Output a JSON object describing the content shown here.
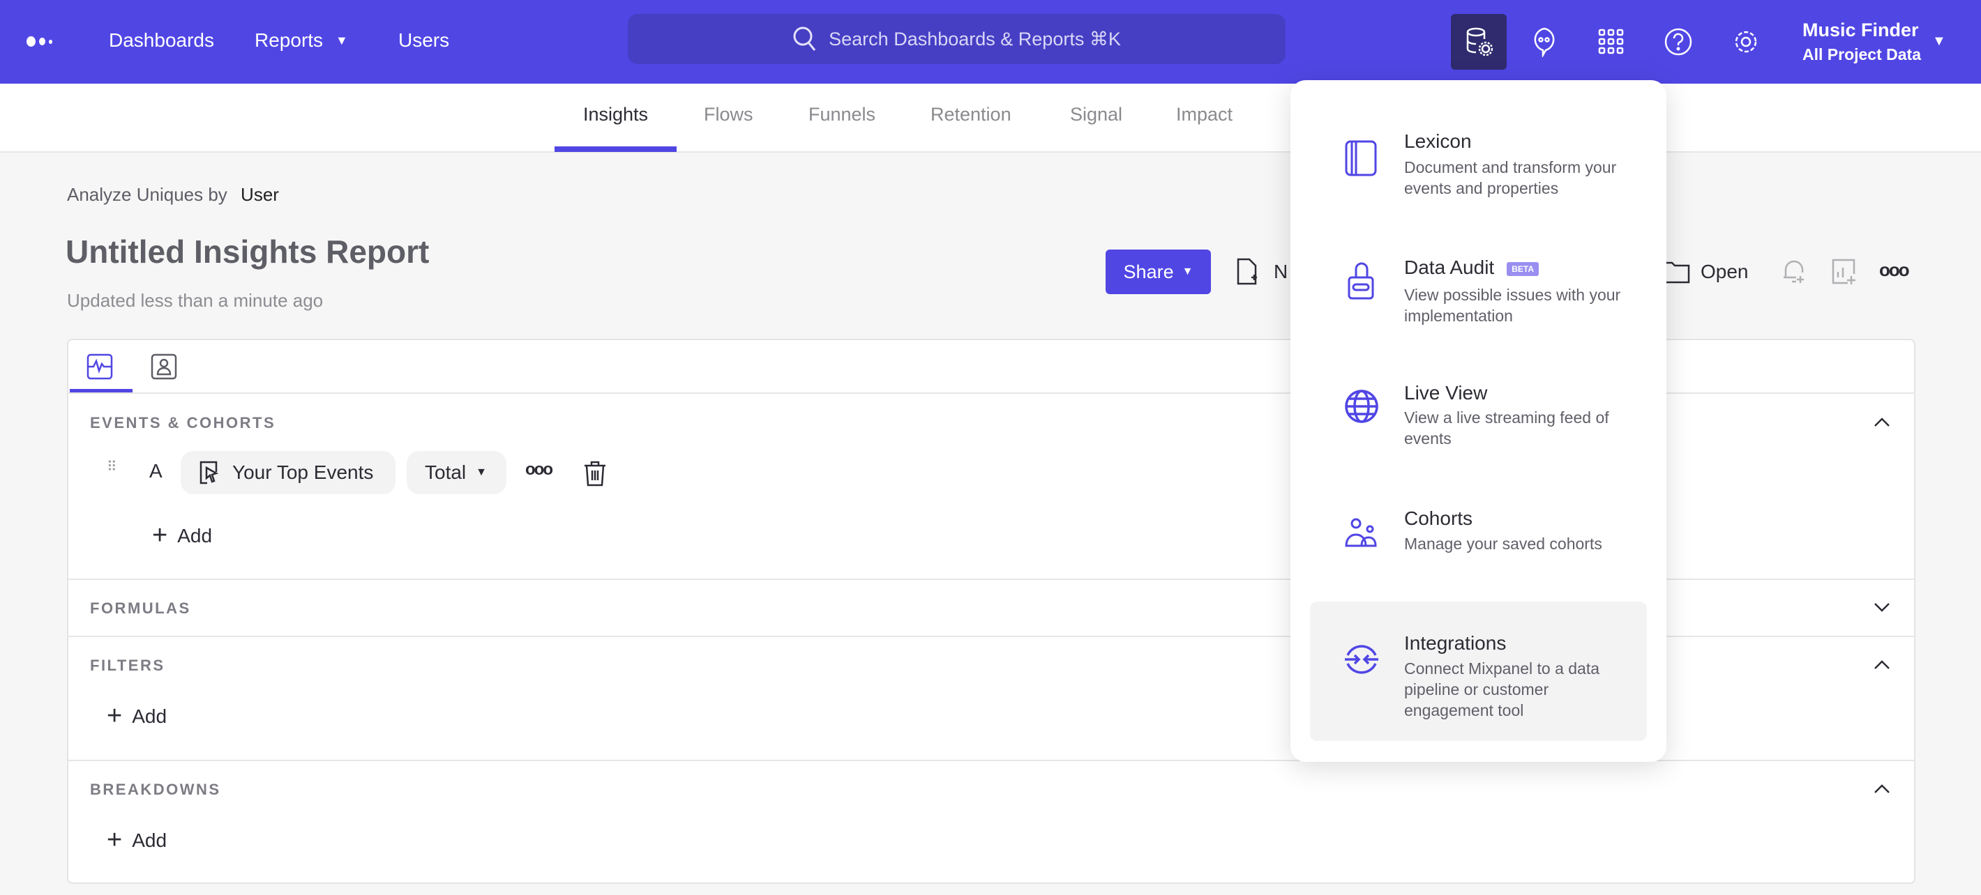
{
  "topbar": {
    "nav": [
      "Dashboards",
      "Reports",
      "Users"
    ],
    "search_placeholder": "Search Dashboards & Reports ⌘K",
    "icons": [
      "data-management-icon",
      "chat-icon",
      "apps-grid-icon",
      "help-icon",
      "settings-icon"
    ],
    "project_name": "Music Finder",
    "project_scope": "All Project Data"
  },
  "tabs": [
    "Insights",
    "Flows",
    "Funnels",
    "Retention",
    "Signal",
    "Impact"
  ],
  "active_tab": "Insights",
  "report": {
    "analyze_label": "Analyze Uniques by",
    "analyze_value": "User",
    "title": "Untitled Insights Report",
    "updated": "Updated less than a minute ago",
    "share_label": "Share",
    "new_label": "N",
    "open_label": "Open"
  },
  "query": {
    "sections": {
      "events": "EVENTS & COHORTS",
      "formulas": "FORMULAS",
      "filters": "FILTERS",
      "breakdowns": "BREAKDOWNS"
    },
    "row_letter": "A",
    "event": "Your Top Events",
    "measure": "Total",
    "add_label": "Add"
  },
  "dropdown": {
    "items": [
      {
        "title": "Lexicon",
        "desc": "Document and transform your events and properties"
      },
      {
        "title": "Data Audit",
        "badge": "BETA",
        "desc": "View possible issues with your implementation"
      },
      {
        "title": "Live View",
        "desc": "View a live streaming feed of events"
      },
      {
        "title": "Cohorts",
        "desc": "Manage your saved cohorts"
      },
      {
        "title": "Integrations",
        "desc": "Connect Mixpanel to a data pipeline or customer engagement tool"
      }
    ],
    "highlighted": "Integrations"
  },
  "colors": {
    "brand": "#5046e4",
    "header_active": "#2f2b6e",
    "beta": "#9a8ff0"
  }
}
